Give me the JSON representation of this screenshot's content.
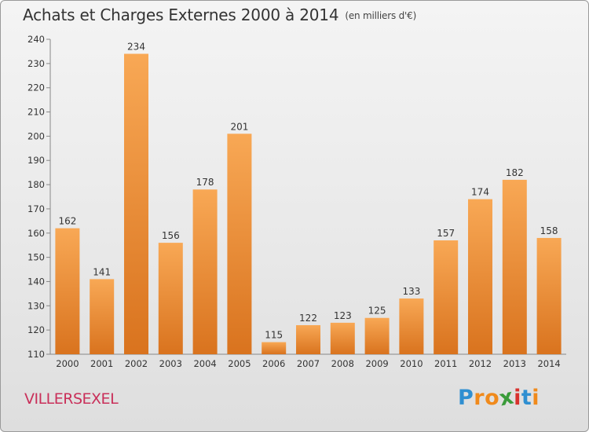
{
  "chart_data": {
    "type": "bar",
    "title": "Achats et Charges Externes 2000 à 2014",
    "subtitle": "(en milliers d'€)",
    "categories": [
      "2000",
      "2001",
      "2002",
      "2003",
      "2004",
      "2005",
      "2006",
      "2007",
      "2008",
      "2009",
      "2010",
      "2011",
      "2012",
      "2013",
      "2014"
    ],
    "values": [
      162,
      141,
      234,
      156,
      178,
      201,
      115,
      122,
      123,
      125,
      133,
      157,
      174,
      182,
      158
    ],
    "ylim": [
      110,
      240
    ],
    "yticks": [
      110,
      120,
      130,
      140,
      150,
      160,
      170,
      180,
      190,
      200,
      210,
      220,
      230,
      240
    ],
    "grid": false,
    "bar_color": "#e8832a"
  },
  "footer": {
    "place": "VILLERSEXEL",
    "place_color": "#c9305a",
    "logo_text": "Proxiti",
    "logo_letters": [
      "P",
      "r",
      "o",
      "x",
      "i",
      "t",
      "i"
    ],
    "logo_colors": [
      "#2f8fd1",
      "#f08a1c",
      "#f08a1c",
      "#3a9b3a",
      "#d8322e",
      "#2f8fd1",
      "#f08a1c"
    ]
  }
}
